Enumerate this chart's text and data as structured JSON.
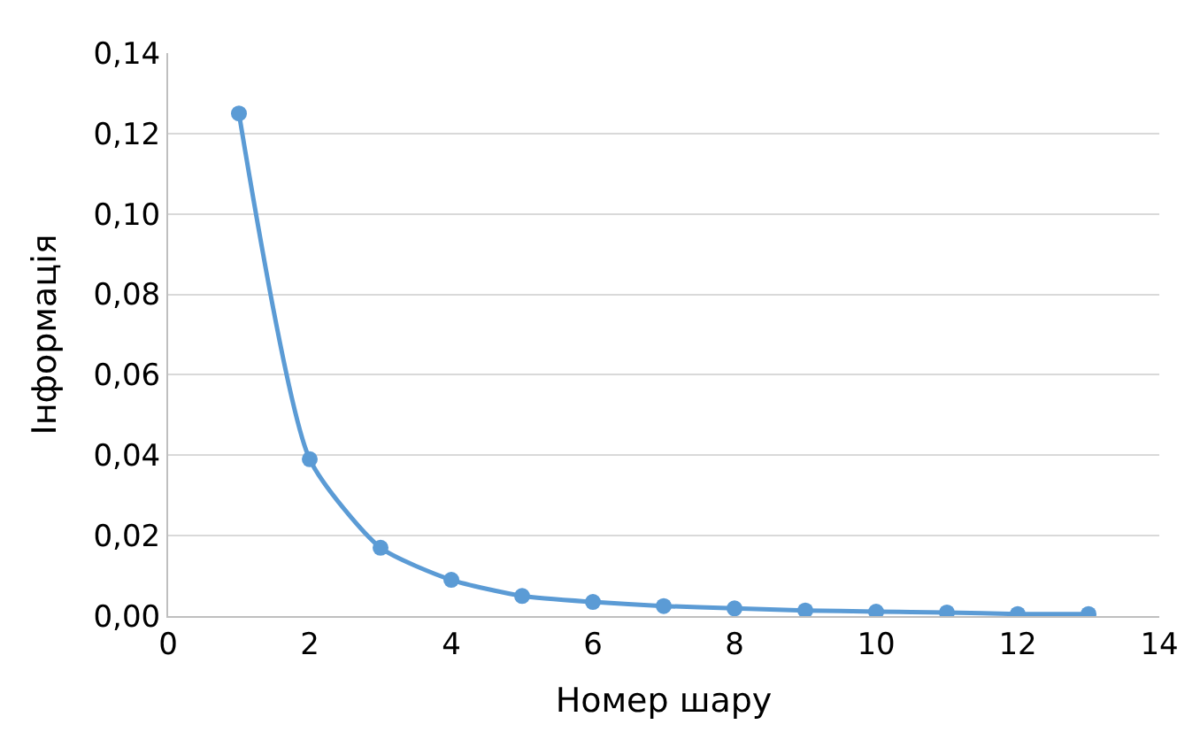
{
  "chart_data": {
    "type": "line",
    "xlabel": "Номер шару",
    "ylabel": "Інформація",
    "x": [
      1,
      2,
      3,
      4,
      5,
      6,
      7,
      8,
      9,
      10,
      11,
      12,
      13
    ],
    "series": [
      {
        "color": "#5b9bd5",
        "values": [
          0.125,
          0.039,
          0.017,
          0.009,
          0.005,
          0.0035,
          0.0025,
          0.0019,
          0.0014,
          0.0011,
          0.0009,
          0.0005,
          0.0005
        ]
      }
    ],
    "xlim": [
      0,
      14
    ],
    "xticks": [
      0,
      2,
      4,
      6,
      8,
      10,
      12,
      14
    ],
    "ylim": [
      0,
      0.14
    ],
    "yticks": [
      {
        "value": 0,
        "label": "0,00"
      },
      {
        "value": 0.02,
        "label": "0,02"
      },
      {
        "value": 0.04,
        "label": "0,04"
      },
      {
        "value": 0.06,
        "label": "0,06"
      },
      {
        "value": 0.08,
        "label": "0,08"
      },
      {
        "value": 0.1,
        "label": "0,10"
      },
      {
        "value": 0.12,
        "label": "0,12"
      },
      {
        "value": 0.14,
        "label": "0,14"
      }
    ],
    "grid": "y",
    "marker": "circle",
    "line_style": "solid"
  }
}
